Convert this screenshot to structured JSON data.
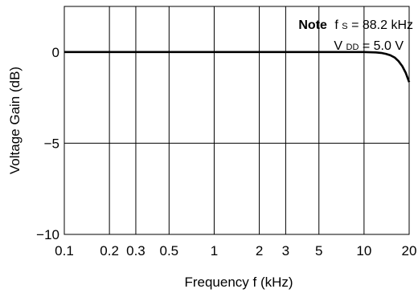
{
  "chart_data": {
    "type": "line",
    "xlabel": "Frequency f (kHz)",
    "ylabel": "Voltage Gain (dB)",
    "x_scale": "log",
    "xlim": [
      0.1,
      20
    ],
    "ylim": [
      -10,
      2.5
    ],
    "x_ticks": [
      {
        "value": 0.1,
        "label": "0.1"
      },
      {
        "value": 0.2,
        "label": "0.2"
      },
      {
        "value": 0.3,
        "label": "0.3"
      },
      {
        "value": 0.5,
        "label": "0.5"
      },
      {
        "value": 1,
        "label": "1"
      },
      {
        "value": 2,
        "label": "2"
      },
      {
        "value": 3,
        "label": "3"
      },
      {
        "value": 5,
        "label": "5"
      },
      {
        "value": 10,
        "label": "10"
      },
      {
        "value": 20,
        "label": "20"
      }
    ],
    "y_ticks": [
      {
        "value": 0,
        "label": "0"
      },
      {
        "value": -5,
        "label": "−5"
      },
      {
        "value": -10,
        "label": "−10"
      }
    ],
    "grid": true,
    "series": [
      {
        "x": [
          0.1,
          0.5,
          1,
          5,
          10,
          12,
          13,
          14,
          15,
          16,
          17,
          18,
          19,
          20
        ],
        "y": [
          0,
          0,
          0,
          0,
          0,
          -0.02,
          -0.05,
          -0.1,
          -0.18,
          -0.3,
          -0.5,
          -0.78,
          -1.15,
          -1.65
        ],
        "color": "#000000"
      }
    ],
    "annotation": {
      "title": "Note",
      "line1": {
        "symbol": "f",
        "subscript": "S",
        "value": " = 88.2 kHz"
      },
      "line2": {
        "symbol": "V",
        "subscript": "DD",
        "value": " = 5.0 V"
      },
      "placement": "top-right"
    }
  }
}
